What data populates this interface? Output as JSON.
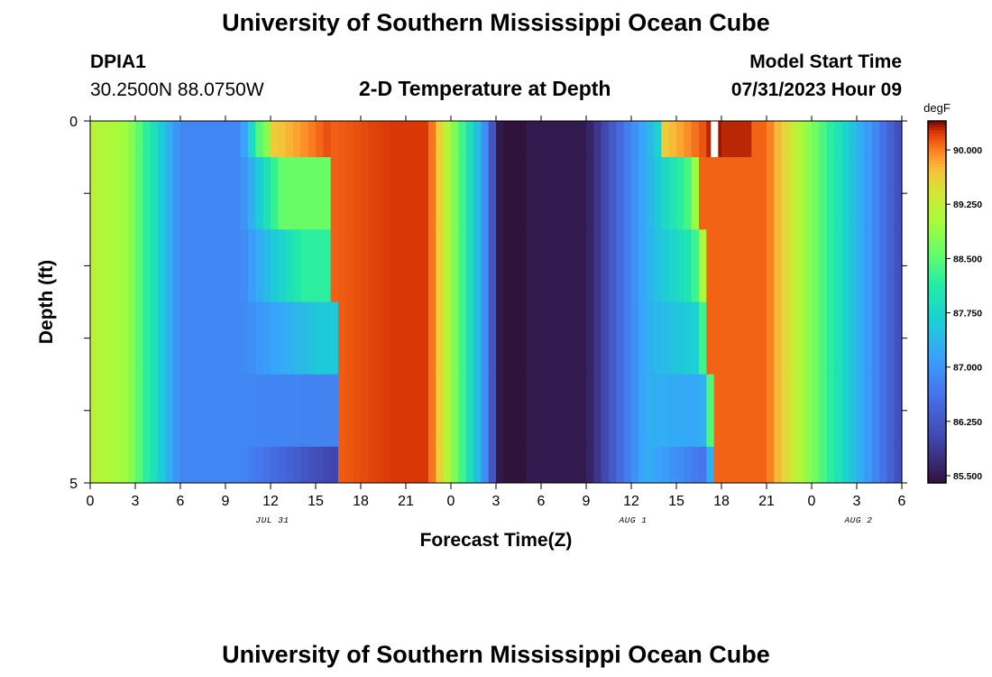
{
  "header": {
    "title": "University of Southern Mississippi Ocean Cube",
    "station_id": "DPIA1",
    "station_coords": "30.2500N  88.0750W",
    "plot_title": "2-D Temperature at Depth",
    "model_label": "Model Start Time",
    "model_time": "07/31/2023 Hour 09"
  },
  "footer": {
    "title": "University of Southern Mississippi Ocean Cube"
  },
  "chart_data": {
    "type": "heatmap",
    "title": "2-D Temperature at Depth",
    "xlabel": "Forecast Time(Z)",
    "ylabel": "Depth (ft)",
    "x_unit": "hour index (0 = 07/31/2023 00Z)",
    "xlim": [
      0,
      54
    ],
    "ylim": [
      5,
      0
    ],
    "x_tick_labels": [
      "0",
      "3",
      "6",
      "9",
      "12",
      "15",
      "18",
      "21",
      "0",
      "3",
      "6",
      "9",
      "12",
      "15",
      "18",
      "21",
      "0",
      "3",
      "6"
    ],
    "x_tick_values": [
      0,
      3,
      6,
      9,
      12,
      15,
      18,
      21,
      24,
      27,
      30,
      33,
      36,
      39,
      42,
      45,
      48,
      51,
      54
    ],
    "date_labels": [
      {
        "text": "JUL 31",
        "x": 12
      },
      {
        "text": "AUG 1",
        "x": 36
      },
      {
        "text": "AUG 2",
        "x": 51
      }
    ],
    "y_tick_labels": [
      "0",
      "5"
    ],
    "y_tick_values": [
      0,
      5
    ],
    "depth_rows": [
      0,
      1,
      2,
      3,
      4,
      5
    ],
    "colorbar": {
      "unit": "degF",
      "min": 85.4,
      "max": 90.4,
      "tick_values": [
        85.5,
        86.25,
        87.0,
        87.75,
        88.5,
        89.25,
        90.0
      ],
      "tick_labels": [
        "85.500",
        "86.250",
        "87.000",
        "87.750",
        "88.500",
        "89.250",
        "90.000"
      ]
    },
    "missing_cells": [
      {
        "x": 41.3,
        "depth": 0
      }
    ],
    "description": "Temperature (degF) vs forecast time and depth; warm (~90.3) near 18-22Z Jul 31 and 17-20Z Aug 1, cold (~85.5) near 6-9Z Aug 1."
  }
}
